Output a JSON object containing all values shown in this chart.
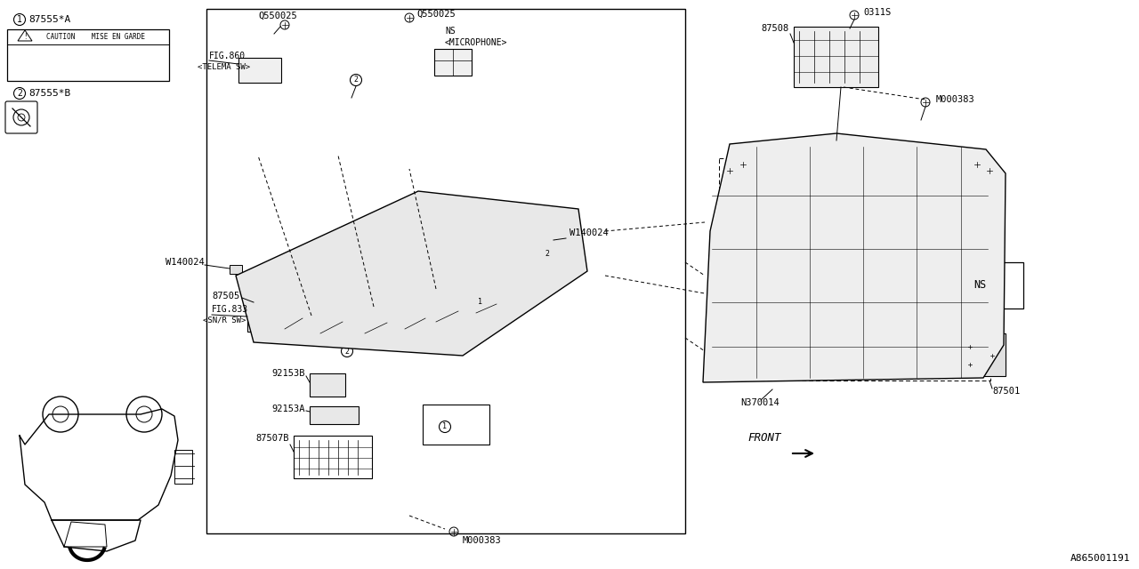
{
  "bg_color": "#ffffff",
  "lc": "#000000",
  "fig_id": "A865001191",
  "parts": {
    "label1": "87555*A",
    "label2": "87555*B",
    "label3": "87505",
    "label4a": "FIG.860",
    "label4b": "<TELEMA SW>",
    "label5a": "FIG.833",
    "label5b": "<SN/R SW>",
    "label6": "Q550025",
    "label7a": "Q550025",
    "label7b": "NS",
    "label7c": "<MICROPHONE>",
    "label8": "W140024",
    "label9": "W140024",
    "label10": "92153B",
    "label11": "92153A",
    "label12": "87507B",
    "label13": "M000383",
    "label14": "M000383",
    "label15": "0311S",
    "label16": "87508",
    "label17": "NS",
    "label18": "87501",
    "label19": "N370014",
    "label20": "FRONT",
    "caution": "CAUTION    MISE EN GARDE"
  }
}
